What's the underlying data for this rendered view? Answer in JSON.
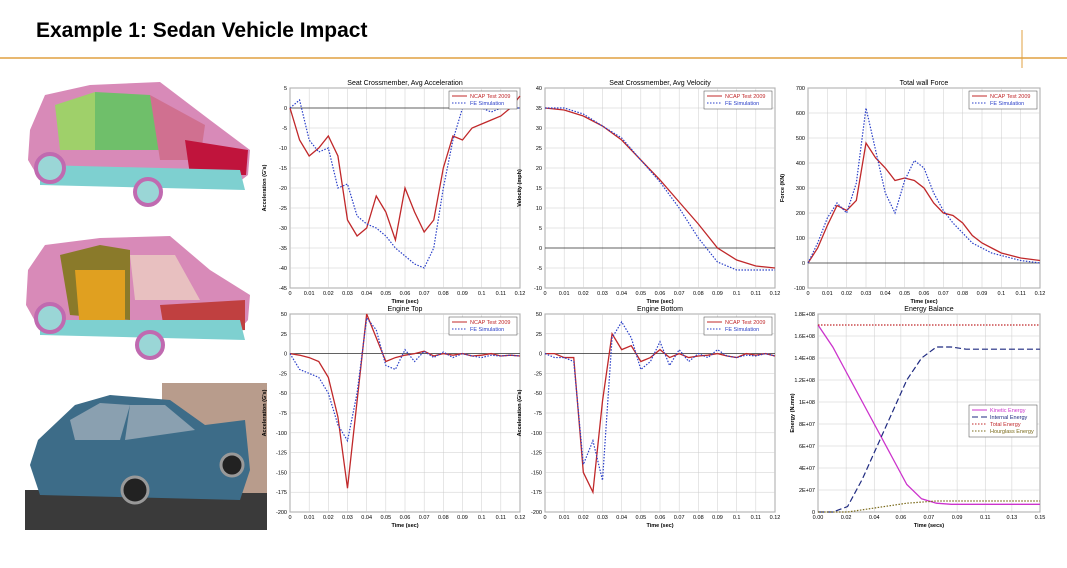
{
  "page_title": "Example 1: Sedan Vehicle Impact",
  "chart_data": [
    {
      "type": "line",
      "title": "Seat Crossmember, Avg Acceleration",
      "xlabel": "Time (sec)",
      "ylabel": "Acceleration (G's)",
      "x": [
        0,
        0.005,
        0.01,
        0.015,
        0.02,
        0.025,
        0.03,
        0.035,
        0.04,
        0.045,
        0.05,
        0.055,
        0.06,
        0.065,
        0.07,
        0.075,
        0.08,
        0.085,
        0.09,
        0.095,
        0.1,
        0.105,
        0.11,
        0.115,
        0.12
      ],
      "series": [
        {
          "name": "NCAP Test 2009",
          "color": "#c0282a",
          "style": "solid",
          "values": [
            0,
            -8,
            -12,
            -10,
            -7,
            -12,
            -28,
            -32,
            -30,
            -22,
            -26,
            -33,
            -20,
            -26,
            -31,
            -28,
            -15,
            -7,
            -8,
            -5,
            -4,
            -3,
            -2,
            0,
            3
          ]
        },
        {
          "name": "FE Simulation",
          "color": "#2a3fc8",
          "style": "dotted",
          "values": [
            0,
            2,
            -8,
            -11,
            -10,
            -20,
            -19,
            -27,
            -29,
            -30,
            -32,
            -35,
            -37,
            -39,
            -40,
            -35,
            -20,
            -8,
            0,
            1,
            0,
            -1,
            0,
            0,
            0
          ]
        }
      ],
      "xlim": [
        0,
        0.12
      ],
      "ylim": [
        -45,
        5
      ],
      "xticks": [
        0,
        0.01,
        0.02,
        0.03,
        0.04,
        0.05,
        0.06,
        0.07,
        0.08,
        0.09,
        0.1,
        0.11,
        0.12
      ],
      "yticks": [
        5,
        0,
        -5,
        -10,
        -15,
        -20,
        -25,
        -30,
        -35,
        -40,
        -45
      ],
      "grid": true,
      "legend": "upper right"
    },
    {
      "type": "line",
      "title": "Seat Crossmember, Avg Velocity",
      "xlabel": "Time (sec)",
      "ylabel": "Velocity (mph)",
      "x": [
        0,
        0.01,
        0.02,
        0.03,
        0.04,
        0.05,
        0.06,
        0.07,
        0.08,
        0.09,
        0.1,
        0.11,
        0.12
      ],
      "series": [
        {
          "name": "NCAP Test 2009",
          "color": "#c0282a",
          "style": "solid",
          "values": [
            35,
            34.5,
            33,
            30.5,
            27,
            22,
            17,
            11.5,
            6,
            0,
            -3,
            -4.5,
            -5
          ]
        },
        {
          "name": "FE Simulation",
          "color": "#2a3fc8",
          "style": "dotted",
          "values": [
            35,
            35,
            33.5,
            30.5,
            27.5,
            22,
            16.5,
            10,
            2.5,
            -3.5,
            -5.5,
            -5.5,
            -5.5
          ]
        }
      ],
      "xlim": [
        0,
        0.12
      ],
      "ylim": [
        -10,
        40
      ],
      "xticks": [
        0,
        0.01,
        0.02,
        0.03,
        0.04,
        0.05,
        0.06,
        0.07,
        0.08,
        0.09,
        0.1,
        0.11,
        0.12
      ],
      "yticks": [
        40,
        35,
        30,
        25,
        20,
        15,
        10,
        5,
        0,
        -5,
        -10
      ],
      "grid": true,
      "legend": "upper right"
    },
    {
      "type": "line",
      "title": "Total wall Force",
      "xlabel": "Time (sec)",
      "ylabel": "Force (KN)",
      "x": [
        0,
        0.005,
        0.01,
        0.015,
        0.02,
        0.025,
        0.03,
        0.035,
        0.04,
        0.045,
        0.05,
        0.055,
        0.06,
        0.065,
        0.07,
        0.075,
        0.08,
        0.085,
        0.09,
        0.095,
        0.1,
        0.105,
        0.11,
        0.115,
        0.12
      ],
      "series": [
        {
          "name": "NCAP Test 2009",
          "color": "#c0282a",
          "style": "solid",
          "values": [
            0,
            60,
            150,
            230,
            210,
            250,
            480,
            420,
            380,
            330,
            340,
            330,
            300,
            240,
            200,
            190,
            160,
            110,
            80,
            60,
            40,
            30,
            20,
            15,
            10
          ]
        },
        {
          "name": "FE Simulation",
          "color": "#2a3fc8",
          "style": "dotted",
          "values": [
            0,
            80,
            180,
            240,
            200,
            320,
            620,
            450,
            280,
            200,
            330,
            410,
            380,
            280,
            210,
            160,
            120,
            80,
            60,
            40,
            30,
            20,
            10,
            5,
            0
          ]
        }
      ],
      "xlim": [
        0,
        0.12
      ],
      "ylim": [
        -100,
        700
      ],
      "xticks": [
        0,
        0.01,
        0.02,
        0.03,
        0.04,
        0.05,
        0.06,
        0.07,
        0.08,
        0.09,
        0.1,
        0.11,
        0.12
      ],
      "yticks": [
        700,
        600,
        500,
        400,
        300,
        200,
        100,
        0,
        -100
      ],
      "grid": true,
      "legend": "upper right"
    },
    {
      "type": "line",
      "title": "Engine Top",
      "xlabel": "Time (sec)",
      "ylabel": "Acceleration (G's)",
      "x": [
        0,
        0.005,
        0.01,
        0.015,
        0.02,
        0.025,
        0.03,
        0.035,
        0.04,
        0.045,
        0.05,
        0.055,
        0.06,
        0.065,
        0.07,
        0.075,
        0.08,
        0.085,
        0.09,
        0.095,
        0.1,
        0.105,
        0.11,
        0.115,
        0.12
      ],
      "series": [
        {
          "name": "NCAP Test 2009",
          "color": "#c0282a",
          "style": "solid",
          "values": [
            0,
            -2,
            -5,
            -10,
            -30,
            -80,
            -170,
            -60,
            50,
            20,
            -10,
            -5,
            -2,
            0,
            3,
            -3,
            0,
            -2,
            0,
            -3,
            -2,
            0,
            -3,
            -2,
            -3
          ]
        },
        {
          "name": "FE Simulation",
          "color": "#2a3fc8",
          "style": "dotted",
          "values": [
            0,
            -20,
            -25,
            -30,
            -50,
            -90,
            -110,
            -50,
            45,
            30,
            -15,
            -20,
            5,
            -10,
            3,
            -5,
            2,
            -5,
            0,
            -3,
            -5,
            -2,
            -3,
            -2,
            -3
          ]
        }
      ],
      "xlim": [
        0,
        0.12
      ],
      "ylim": [
        -200,
        50
      ],
      "xticks": [
        0,
        0.01,
        0.02,
        0.03,
        0.04,
        0.05,
        0.06,
        0.07,
        0.08,
        0.09,
        0.1,
        0.11,
        0.12
      ],
      "yticks": [
        50,
        25,
        0,
        -25,
        -50,
        -75,
        -100,
        -125,
        -150,
        -175,
        -200
      ],
      "grid": true,
      "legend": "upper right"
    },
    {
      "type": "line",
      "title": "Engine Bottom",
      "xlabel": "Time (sec)",
      "ylabel": "Acceleration (G's)",
      "x": [
        0,
        0.005,
        0.01,
        0.015,
        0.02,
        0.025,
        0.03,
        0.035,
        0.04,
        0.045,
        0.05,
        0.055,
        0.06,
        0.065,
        0.07,
        0.075,
        0.08,
        0.085,
        0.09,
        0.095,
        0.1,
        0.105,
        0.11,
        0.115,
        0.12
      ],
      "series": [
        {
          "name": "NCAP Test 2009",
          "color": "#c0282a",
          "style": "solid",
          "values": [
            0,
            0,
            -5,
            -5,
            -150,
            -175,
            -60,
            25,
            5,
            10,
            -10,
            -5,
            5,
            -5,
            0,
            -5,
            -3,
            -2,
            0,
            -3,
            -5,
            0,
            -2,
            0,
            -3
          ]
        },
        {
          "name": "FE Simulation",
          "color": "#2a3fc8",
          "style": "dotted",
          "values": [
            0,
            -5,
            -5,
            -10,
            -140,
            -110,
            -160,
            20,
            40,
            20,
            -20,
            -10,
            15,
            -15,
            5,
            -10,
            0,
            -5,
            5,
            -3,
            -5,
            -2,
            -3,
            0,
            -3
          ]
        }
      ],
      "xlim": [
        0,
        0.12
      ],
      "ylim": [
        -200,
        50
      ],
      "xticks": [
        0,
        0.01,
        0.02,
        0.03,
        0.04,
        0.05,
        0.06,
        0.07,
        0.08,
        0.09,
        0.1,
        0.11,
        0.12
      ],
      "yticks": [
        50,
        25,
        0,
        -25,
        -50,
        -75,
        -100,
        -125,
        -150,
        -175,
        -200
      ],
      "grid": true,
      "legend": "upper right"
    },
    {
      "type": "line",
      "title": "Energy Balance",
      "xlabel": "Time (secs)",
      "ylabel": "Energy (N.mm)",
      "x": [
        0,
        0.01,
        0.02,
        0.03,
        0.04,
        0.05,
        0.06,
        0.07,
        0.08,
        0.09,
        0.1,
        0.11,
        0.12,
        0.13,
        0.14,
        0.15
      ],
      "series": [
        {
          "name": "Kinetic Energy",
          "color": "#cc33cc",
          "style": "solid",
          "values": [
            170000000,
            150000000,
            125000000,
            100000000,
            75000000,
            50000000,
            25000000,
            12000000,
            8000000,
            7000000,
            7000000,
            7000000,
            7000000,
            7000000,
            7000000,
            7000000
          ]
        },
        {
          "name": "Internal Energy",
          "color": "#1f2a80",
          "style": "dashed",
          "values": [
            0,
            0,
            5000000,
            30000000,
            60000000,
            90000000,
            120000000,
            140000000,
            150000000,
            150000000,
            148000000,
            148000000,
            148000000,
            148000000,
            148000000,
            148000000
          ]
        },
        {
          "name": "Total Energy",
          "color": "#c0282a",
          "style": "dotted",
          "values": [
            170000000,
            170000000,
            170000000,
            170000000,
            170000000,
            170000000,
            170000000,
            170000000,
            170000000,
            170000000,
            170000000,
            170000000,
            170000000,
            170000000,
            170000000,
            170000000
          ]
        },
        {
          "name": "Hourglass Energy",
          "color": "#7a6a1a",
          "style": "dotted",
          "values": [
            0,
            0,
            0,
            2000000,
            4000000,
            6000000,
            8000000,
            9000000,
            10000000,
            10000000,
            10000000,
            10000000,
            10000000,
            10000000,
            10000000,
            10000000
          ]
        }
      ],
      "xlim": [
        0,
        0.15
      ],
      "ylim": [
        0,
        180000000
      ],
      "xticks": [
        {
          "value": 0,
          "label": "0.00"
        },
        {
          "value": 0.019,
          "label": "0.02"
        },
        {
          "value": 0.038,
          "label": "0.04"
        },
        {
          "value": 0.056,
          "label": "0.06"
        },
        {
          "value": 0.0749,
          "label": "0.07"
        },
        {
          "value": 0.094,
          "label": "0.09"
        },
        {
          "value": 0.113,
          "label": "0.11"
        },
        {
          "value": 0.131,
          "label": "0.13"
        },
        {
          "value": 0.15,
          "label": "0.15"
        }
      ],
      "yticks": [
        {
          "value": 180000000,
          "label": "1.8E+08"
        },
        {
          "value": 160000000,
          "label": "1.6E+08"
        },
        {
          "value": 140000000,
          "label": "1.4E+08"
        },
        {
          "value": 120000000,
          "label": "1.2E+08"
        },
        {
          "value": 100000000,
          "label": "1E+08"
        },
        {
          "value": 80000000,
          "label": "8E+07"
        },
        {
          "value": 60000000,
          "label": "6E+07"
        },
        {
          "value": 40000000,
          "label": "4E+07"
        },
        {
          "value": 20000000,
          "label": "2E+07"
        },
        0
      ],
      "grid": true,
      "legend": "center right"
    }
  ]
}
